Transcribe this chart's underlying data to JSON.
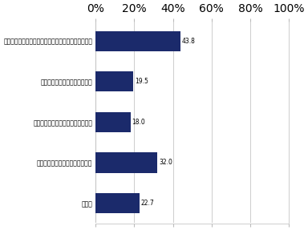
{
  "categories": [
    "会社に行かなくてもよい日に、「会社に行く」と言う",
    "出張が無いのに「出張」と言う",
    "マスク等日用品を探しに行くと言う",
    "友人や親族との用事を理由にする",
    "その他"
  ],
  "values": [
    43.8,
    19.5,
    18.0,
    32.0,
    22.7
  ],
  "bar_color": "#1b2a6b",
  "xlim": [
    0,
    100
  ],
  "xticks": [
    0,
    20,
    40,
    60,
    80,
    100
  ],
  "xticklabels": [
    "0%",
    "20%",
    "40%",
    "60%",
    "80%",
    "100%"
  ],
  "label_fontsize": 5.5,
  "value_fontsize": 5.5,
  "tick_fontsize": 6.0,
  "bg_color": "#ffffff",
  "plot_bg_color": "#ffffff",
  "grid_color": "#bbbbbb",
  "bar_height": 0.5
}
